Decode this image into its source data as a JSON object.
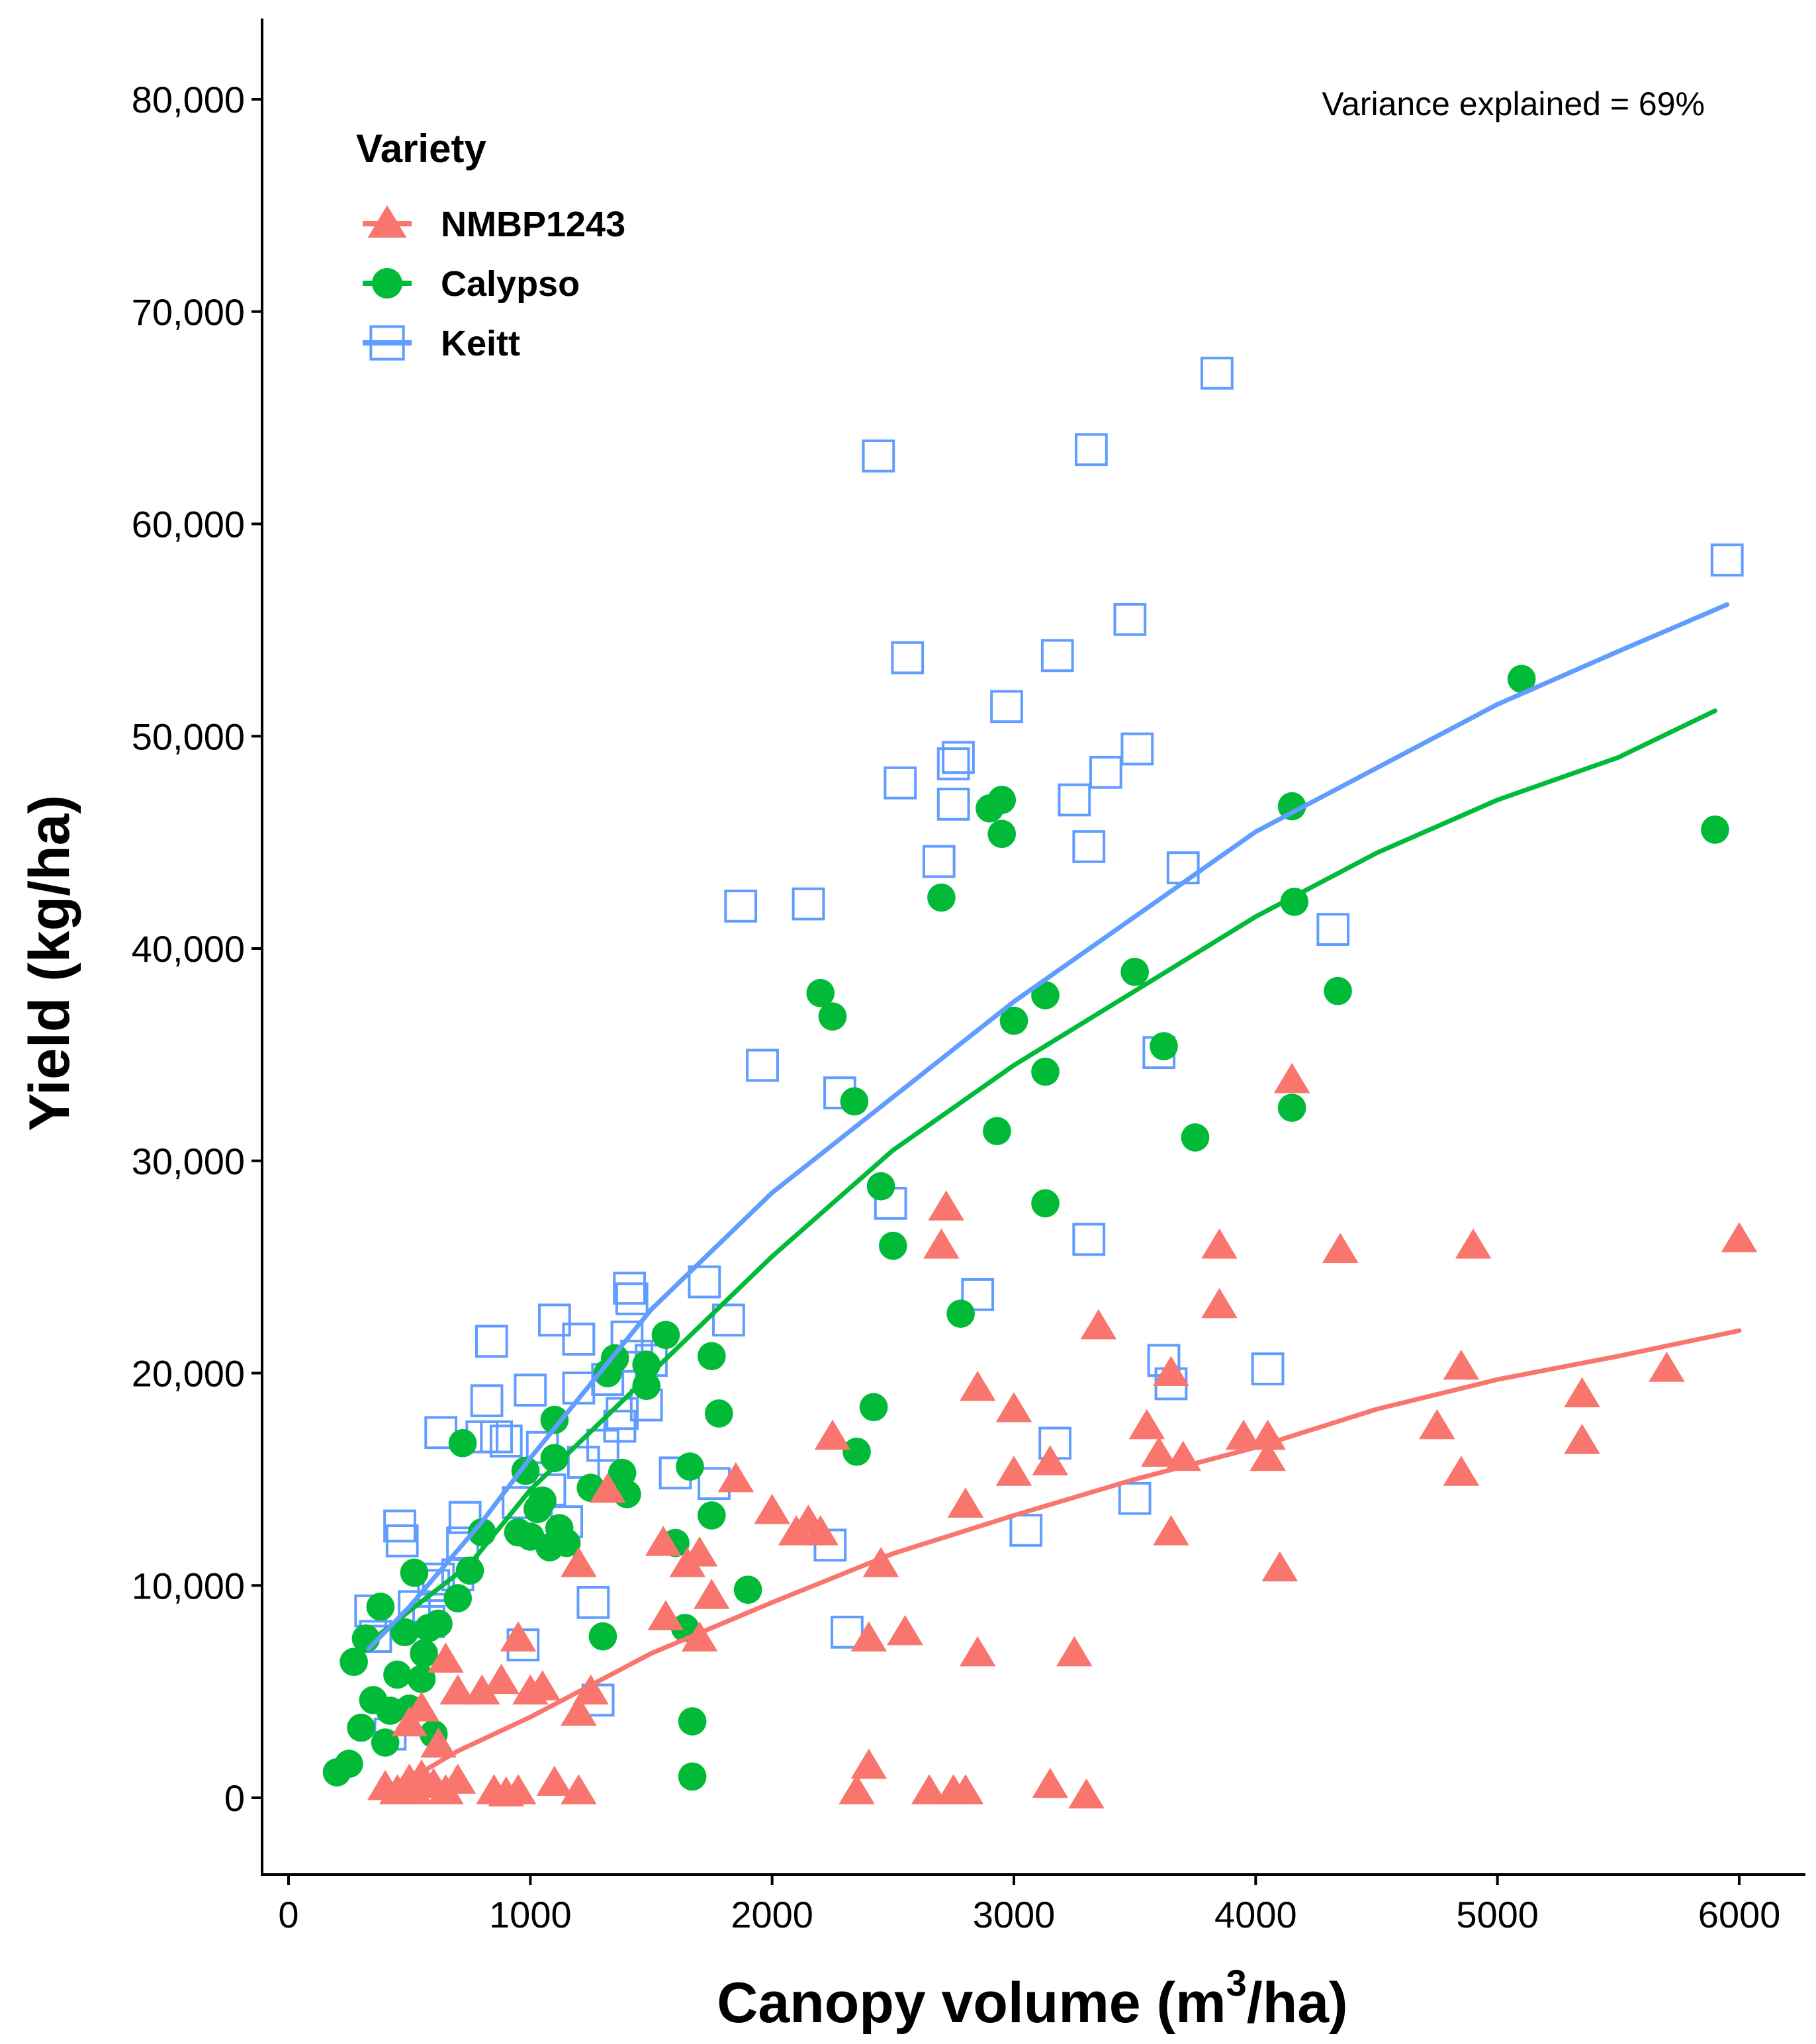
{
  "chart_data": {
    "type": "scatter",
    "xlabel": "Canopy volume (m",
    "xlabel_sup": "3",
    "xlabel_suffix": "/ha)",
    "ylabel": "Yield (kg/ha)",
    "xlim": [
      -100,
      6250
    ],
    "ylim": [
      -4000,
      84000
    ],
    "xticks": [
      0,
      1000,
      2000,
      3000,
      4000,
      5000,
      6000
    ],
    "xtick_labels": [
      "0",
      "1000",
      "2000",
      "3000",
      "4000",
      "5000",
      "6000"
    ],
    "yticks": [
      0,
      10000,
      20000,
      30000,
      40000,
      50000,
      60000,
      70000,
      80000
    ],
    "ytick_labels": [
      "0",
      "10,000",
      "20,000",
      "30,000",
      "40,000",
      "50,000",
      "60,000",
      "70,000",
      "80,000"
    ],
    "annotation": "Variance explained = 69%",
    "legend": {
      "title": "Variety",
      "position": "top-left",
      "entries": [
        "NMBP1243",
        "Calypso",
        "Keitt"
      ]
    },
    "series": [
      {
        "name": "NMBP1243",
        "color": "#F8766D",
        "marker": "triangle",
        "points": [
          [
            400,
            500
          ],
          [
            450,
            300
          ],
          [
            500,
            800
          ],
          [
            520,
            300
          ],
          [
            550,
            1000
          ],
          [
            600,
            600
          ],
          [
            650,
            300
          ],
          [
            700,
            800
          ],
          [
            850,
            300
          ],
          [
            900,
            200
          ],
          [
            950,
            300
          ],
          [
            1100,
            700
          ],
          [
            1200,
            300
          ],
          [
            500,
            3500
          ],
          [
            550,
            4200
          ],
          [
            620,
            2500
          ],
          [
            650,
            6500
          ],
          [
            700,
            5000
          ],
          [
            800,
            5000
          ],
          [
            880,
            5500
          ],
          [
            950,
            7500
          ],
          [
            1000,
            5000
          ],
          [
            1050,
            5200
          ],
          [
            1200,
            4000
          ],
          [
            1200,
            11000
          ],
          [
            1250,
            5000
          ],
          [
            1320,
            14500
          ],
          [
            1550,
            12000
          ],
          [
            1560,
            8500
          ],
          [
            1650,
            11000
          ],
          [
            1700,
            11500
          ],
          [
            1700,
            7500
          ],
          [
            1750,
            9500
          ],
          [
            1850,
            15000
          ],
          [
            2000,
            13500
          ],
          [
            2100,
            12500
          ],
          [
            2150,
            13000
          ],
          [
            2200,
            12500
          ],
          [
            2250,
            17000
          ],
          [
            2350,
            300
          ],
          [
            2400,
            1500
          ],
          [
            2400,
            7500
          ],
          [
            2450,
            11000
          ],
          [
            2550,
            7800
          ],
          [
            2650,
            300
          ],
          [
            2750,
            300
          ],
          [
            2800,
            300
          ],
          [
            2700,
            26000
          ],
          [
            2720,
            27800
          ],
          [
            2800,
            13800
          ],
          [
            2850,
            19300
          ],
          [
            2850,
            6800
          ],
          [
            3000,
            18300
          ],
          [
            3000,
            15300
          ],
          [
            3150,
            600
          ],
          [
            3150,
            15800
          ],
          [
            3250,
            6800
          ],
          [
            3300,
            100
          ],
          [
            3350,
            22200
          ],
          [
            3550,
            17500
          ],
          [
            3600,
            16200
          ],
          [
            3650,
            12500
          ],
          [
            3650,
            20000
          ],
          [
            3700,
            16000
          ],
          [
            3850,
            26000
          ],
          [
            3850,
            23200
          ],
          [
            3950,
            17000
          ],
          [
            4050,
            16000
          ],
          [
            4050,
            17000
          ],
          [
            4100,
            10800
          ],
          [
            4150,
            33800
          ],
          [
            4350,
            25800
          ],
          [
            4750,
            17500
          ],
          [
            4850,
            15300
          ],
          [
            4850,
            20300
          ],
          [
            4900,
            26000
          ],
          [
            5350,
            19000
          ],
          [
            5350,
            16800
          ],
          [
            5700,
            20200
          ],
          [
            6000,
            26300
          ]
        ],
        "trend": [
          [
            550,
            1200
          ],
          [
            700,
            2200
          ],
          [
            1000,
            3800
          ],
          [
            1500,
            6800
          ],
          [
            2000,
            9200
          ],
          [
            2500,
            11500
          ],
          [
            3000,
            13300
          ],
          [
            3500,
            15000
          ],
          [
            4000,
            16500
          ],
          [
            4500,
            18300
          ],
          [
            5000,
            19700
          ],
          [
            5500,
            20800
          ],
          [
            6000,
            22000
          ]
        ]
      },
      {
        "name": "Calypso",
        "color": "#00BA38",
        "marker": "circle",
        "points": [
          [
            200,
            1200
          ],
          [
            250,
            1600
          ],
          [
            270,
            6400
          ],
          [
            300,
            3300
          ],
          [
            320,
            7500
          ],
          [
            350,
            4600
          ],
          [
            380,
            9000
          ],
          [
            400,
            2600
          ],
          [
            420,
            4100
          ],
          [
            450,
            5800
          ],
          [
            480,
            7800
          ],
          [
            500,
            4200
          ],
          [
            520,
            10600
          ],
          [
            550,
            5600
          ],
          [
            560,
            6800
          ],
          [
            580,
            8000
          ],
          [
            600,
            3000
          ],
          [
            620,
            8200
          ],
          [
            700,
            9400
          ],
          [
            720,
            16700
          ],
          [
            750,
            10700
          ],
          [
            800,
            12500
          ],
          [
            950,
            12500
          ],
          [
            980,
            15400
          ],
          [
            1000,
            12300
          ],
          [
            1030,
            13600
          ],
          [
            1050,
            14000
          ],
          [
            1080,
            11800
          ],
          [
            1100,
            16000
          ],
          [
            1100,
            17800
          ],
          [
            1120,
            12700
          ],
          [
            1150,
            12000
          ],
          [
            1250,
            14600
          ],
          [
            1300,
            7600
          ],
          [
            1320,
            20000
          ],
          [
            1350,
            20700
          ],
          [
            1380,
            15300
          ],
          [
            1400,
            14300
          ],
          [
            1480,
            19400
          ],
          [
            1480,
            20400
          ],
          [
            1560,
            21800
          ],
          [
            1600,
            12000
          ],
          [
            1640,
            8000
          ],
          [
            1660,
            15600
          ],
          [
            1670,
            3600
          ],
          [
            1670,
            1000
          ],
          [
            1750,
            13300
          ],
          [
            1750,
            20800
          ],
          [
            1780,
            18100
          ],
          [
            1900,
            9800
          ],
          [
            2200,
            37900
          ],
          [
            2250,
            36800
          ],
          [
            2340,
            32800
          ],
          [
            2350,
            16300
          ],
          [
            2420,
            18400
          ],
          [
            2450,
            28800
          ],
          [
            2500,
            26000
          ],
          [
            2700,
            42400
          ],
          [
            2780,
            22800
          ],
          [
            2900,
            46600
          ],
          [
            2950,
            47000
          ],
          [
            2950,
            45400
          ],
          [
            2930,
            31400
          ],
          [
            3000,
            36600
          ],
          [
            3130,
            37800
          ],
          [
            3130,
            34200
          ],
          [
            3130,
            28000
          ],
          [
            3500,
            38900
          ],
          [
            3620,
            35400
          ],
          [
            3750,
            31100
          ],
          [
            4150,
            46700
          ],
          [
            4150,
            32500
          ],
          [
            4160,
            42200
          ],
          [
            4340,
            38000
          ],
          [
            5100,
            52700
          ],
          [
            5900,
            45600
          ]
        ],
        "trend": [
          [
            320,
            7200
          ],
          [
            500,
            8800
          ],
          [
            750,
            11000
          ],
          [
            1000,
            14500
          ],
          [
            1500,
            20000
          ],
          [
            2000,
            25500
          ],
          [
            2500,
            30500
          ],
          [
            3000,
            34500
          ],
          [
            3500,
            38000
          ],
          [
            4000,
            41500
          ],
          [
            4500,
            44500
          ],
          [
            5000,
            47000
          ],
          [
            5500,
            49000
          ],
          [
            5900,
            51200
          ]
        ]
      },
      {
        "name": "Keitt",
        "color": "#619CFF",
        "marker": "square",
        "points": [
          [
            340,
            8800
          ],
          [
            360,
            7600
          ],
          [
            420,
            3000
          ],
          [
            460,
            12800
          ],
          [
            470,
            12100
          ],
          [
            520,
            9000
          ],
          [
            580,
            8300
          ],
          [
            600,
            10000
          ],
          [
            620,
            10300
          ],
          [
            630,
            17200
          ],
          [
            700,
            10500
          ],
          [
            720,
            12000
          ],
          [
            730,
            13200
          ],
          [
            800,
            17000
          ],
          [
            820,
            18700
          ],
          [
            840,
            21500
          ],
          [
            860,
            17000
          ],
          [
            900,
            16800
          ],
          [
            950,
            13900
          ],
          [
            970,
            7200
          ],
          [
            1000,
            19200
          ],
          [
            1050,
            16500
          ],
          [
            1080,
            14500
          ],
          [
            1100,
            22500
          ],
          [
            1150,
            13000
          ],
          [
            1200,
            21600
          ],
          [
            1200,
            19300
          ],
          [
            1220,
            15800
          ],
          [
            1260,
            9200
          ],
          [
            1280,
            4600
          ],
          [
            1300,
            16600
          ],
          [
            1320,
            19700
          ],
          [
            1370,
            17500
          ],
          [
            1380,
            18100
          ],
          [
            1400,
            21700
          ],
          [
            1410,
            24000
          ],
          [
            1420,
            23500
          ],
          [
            1440,
            20800
          ],
          [
            1480,
            18500
          ],
          [
            1500,
            20600
          ],
          [
            1600,
            15300
          ],
          [
            1720,
            24300
          ],
          [
            1760,
            14800
          ],
          [
            1820,
            22500
          ],
          [
            1870,
            42000
          ],
          [
            1960,
            34500
          ],
          [
            2150,
            42100
          ],
          [
            2240,
            11900
          ],
          [
            2280,
            33200
          ],
          [
            2310,
            7800
          ],
          [
            2440,
            63200
          ],
          [
            2490,
            28000
          ],
          [
            2530,
            47800
          ],
          [
            2560,
            53700
          ],
          [
            2690,
            44100
          ],
          [
            2750,
            46800
          ],
          [
            2750,
            48700
          ],
          [
            2770,
            49000
          ],
          [
            2850,
            23700
          ],
          [
            2970,
            51400
          ],
          [
            3050,
            12600
          ],
          [
            3180,
            53800
          ],
          [
            3170,
            16700
          ],
          [
            3250,
            47000
          ],
          [
            3310,
            44800
          ],
          [
            3310,
            26300
          ],
          [
            3320,
            63500
          ],
          [
            3380,
            48300
          ],
          [
            3480,
            55500
          ],
          [
            3510,
            49400
          ],
          [
            3600,
            35100
          ],
          [
            3620,
            20600
          ],
          [
            3650,
            19500
          ],
          [
            3700,
            43800
          ],
          [
            3840,
            67100
          ],
          [
            3500,
            14100
          ],
          [
            4050,
            20200
          ],
          [
            4320,
            40900
          ],
          [
            5950,
            58300
          ]
        ],
        "trend": [
          [
            330,
            7000
          ],
          [
            500,
            9000
          ],
          [
            800,
            13000
          ],
          [
            1000,
            16000
          ],
          [
            1500,
            23000
          ],
          [
            2000,
            28500
          ],
          [
            2500,
            33000
          ],
          [
            3000,
            37500
          ],
          [
            3500,
            41500
          ],
          [
            4000,
            45500
          ],
          [
            4500,
            48500
          ],
          [
            5000,
            51500
          ],
          [
            5500,
            54000
          ],
          [
            5950,
            56200
          ]
        ]
      }
    ]
  }
}
